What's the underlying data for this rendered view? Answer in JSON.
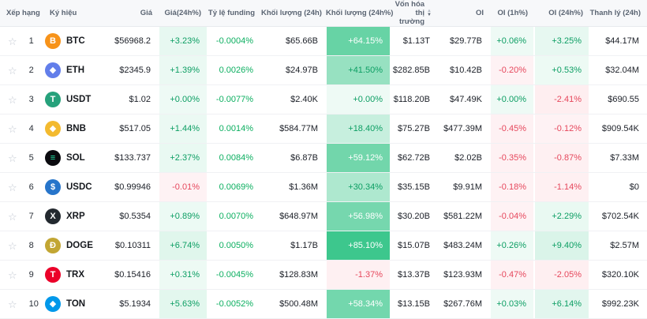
{
  "table": {
    "headers": {
      "rank": "Xếp hạng",
      "symbol": "Ký hiệu",
      "price": "Giá",
      "price_change_24h": "Giá(24h%)",
      "funding_rate": "Tỷ lệ funding",
      "volume_24h": "Khối lượng (24h)",
      "volume_change_24h": "Khối lượng (24h%)",
      "market_cap": "Vốn hóa thị trường",
      "oi": "OI",
      "oi_1h": "OI (1h%)",
      "oi_24h": "OI (24h%)",
      "liquidation_24h": "Thanh lý (24h)"
    },
    "sorted_by": "market_cap"
  },
  "icons": {
    "favorite_star": "☆",
    "sort_asc": "▲",
    "sort_desc": "▼"
  },
  "colors": {
    "positive_text": "#0c9e63",
    "negative_text": "#e6475c",
    "positive_rgb": "13,185,112",
    "negative_rgb": "246,70,93",
    "funding_text": "#0caf60"
  },
  "rows": [
    {
      "rank": "1",
      "symbol": "BTC",
      "icon_glyph": "B",
      "icon_bg": "#f7931a",
      "icon_fg": "#ffffff",
      "price": "$56968.2",
      "price_change_24h": "+3.23%",
      "funding_rate": "-0.0004%",
      "volume_24h": "$65.66B",
      "volume_change_24h": "+64.15%",
      "market_cap": "$1.13T",
      "oi": "$29.77B",
      "oi_1h": "+0.06%",
      "oi_24h": "+3.25%",
      "liquidation_24h": "$44.17M"
    },
    {
      "rank": "2",
      "symbol": "ETH",
      "icon_glyph": "◆",
      "icon_bg": "#627eea",
      "icon_fg": "#ffffff",
      "price": "$2345.9",
      "price_change_24h": "+1.39%",
      "funding_rate": "0.0026%",
      "volume_24h": "$24.97B",
      "volume_change_24h": "+41.50%",
      "market_cap": "$282.85B",
      "oi": "$10.42B",
      "oi_1h": "-0.20%",
      "oi_24h": "+0.53%",
      "liquidation_24h": "$32.04M"
    },
    {
      "rank": "3",
      "symbol": "USDT",
      "icon_glyph": "T",
      "icon_bg": "#26a17b",
      "icon_fg": "#ffffff",
      "price": "$1.02",
      "price_change_24h": "+0.00%",
      "funding_rate": "-0.0077%",
      "volume_24h": "$2.40K",
      "volume_change_24h": "+0.00%",
      "market_cap": "$118.20B",
      "oi": "$47.49K",
      "oi_1h": "+0.00%",
      "oi_24h": "-2.41%",
      "liquidation_24h": "$690.55"
    },
    {
      "rank": "4",
      "symbol": "BNB",
      "icon_glyph": "◆",
      "icon_bg": "#f3ba2f",
      "icon_fg": "#ffffff",
      "price": "$517.05",
      "price_change_24h": "+1.44%",
      "funding_rate": "0.0014%",
      "volume_24h": "$584.77M",
      "volume_change_24h": "+18.40%",
      "market_cap": "$75.27B",
      "oi": "$477.39M",
      "oi_1h": "-0.45%",
      "oi_24h": "-0.12%",
      "liquidation_24h": "$909.54K"
    },
    {
      "rank": "5",
      "symbol": "SOL",
      "icon_glyph": "≡",
      "icon_bg": "#0b0b0f",
      "icon_fg": "#21e6a8",
      "price": "$133.737",
      "price_change_24h": "+2.37%",
      "funding_rate": "0.0084%",
      "volume_24h": "$6.87B",
      "volume_change_24h": "+59.12%",
      "market_cap": "$62.72B",
      "oi": "$2.02B",
      "oi_1h": "-0.35%",
      "oi_24h": "-0.87%",
      "liquidation_24h": "$7.33M"
    },
    {
      "rank": "6",
      "symbol": "USDC",
      "icon_glyph": "$",
      "icon_bg": "#2775ca",
      "icon_fg": "#ffffff",
      "price": "$0.99946",
      "price_change_24h": "-0.01%",
      "funding_rate": "0.0069%",
      "volume_24h": "$1.36M",
      "volume_change_24h": "+30.34%",
      "market_cap": "$35.15B",
      "oi": "$9.91M",
      "oi_1h": "-0.18%",
      "oi_24h": "-1.14%",
      "liquidation_24h": "$0"
    },
    {
      "rank": "7",
      "symbol": "XRP",
      "icon_glyph": "X",
      "icon_bg": "#23292f",
      "icon_fg": "#ffffff",
      "price": "$0.5354",
      "price_change_24h": "+0.89%",
      "funding_rate": "0.0070%",
      "volume_24h": "$648.97M",
      "volume_change_24h": "+56.98%",
      "market_cap": "$30.20B",
      "oi": "$581.22M",
      "oi_1h": "-0.04%",
      "oi_24h": "+2.29%",
      "liquidation_24h": "$702.54K"
    },
    {
      "rank": "8",
      "symbol": "DOGE",
      "icon_glyph": "Ð",
      "icon_bg": "#c2a633",
      "icon_fg": "#ffffff",
      "price": "$0.10311",
      "price_change_24h": "+6.74%",
      "funding_rate": "0.0050%",
      "volume_24h": "$1.17B",
      "volume_change_24h": "+85.10%",
      "market_cap": "$15.07B",
      "oi": "$483.24M",
      "oi_1h": "+0.26%",
      "oi_24h": "+9.40%",
      "liquidation_24h": "$2.57M"
    },
    {
      "rank": "9",
      "symbol": "TRX",
      "icon_glyph": "T",
      "icon_bg": "#eb0029",
      "icon_fg": "#ffffff",
      "price": "$0.15416",
      "price_change_24h": "+0.31%",
      "funding_rate": "-0.0045%",
      "volume_24h": "$128.83M",
      "volume_change_24h": "-1.37%",
      "market_cap": "$13.37B",
      "oi": "$123.93M",
      "oi_1h": "-0.47%",
      "oi_24h": "-2.05%",
      "liquidation_24h": "$320.10K"
    },
    {
      "rank": "10",
      "symbol": "TON",
      "icon_glyph": "◆",
      "icon_bg": "#0098ea",
      "icon_fg": "#ffffff",
      "price": "$5.1934",
      "price_change_24h": "+5.63%",
      "funding_rate": "-0.0052%",
      "volume_24h": "$500.48M",
      "volume_change_24h": "+58.34%",
      "market_cap": "$13.15B",
      "oi": "$267.76M",
      "oi_1h": "+0.03%",
      "oi_24h": "+6.14%",
      "liquidation_24h": "$992.23K"
    }
  ]
}
